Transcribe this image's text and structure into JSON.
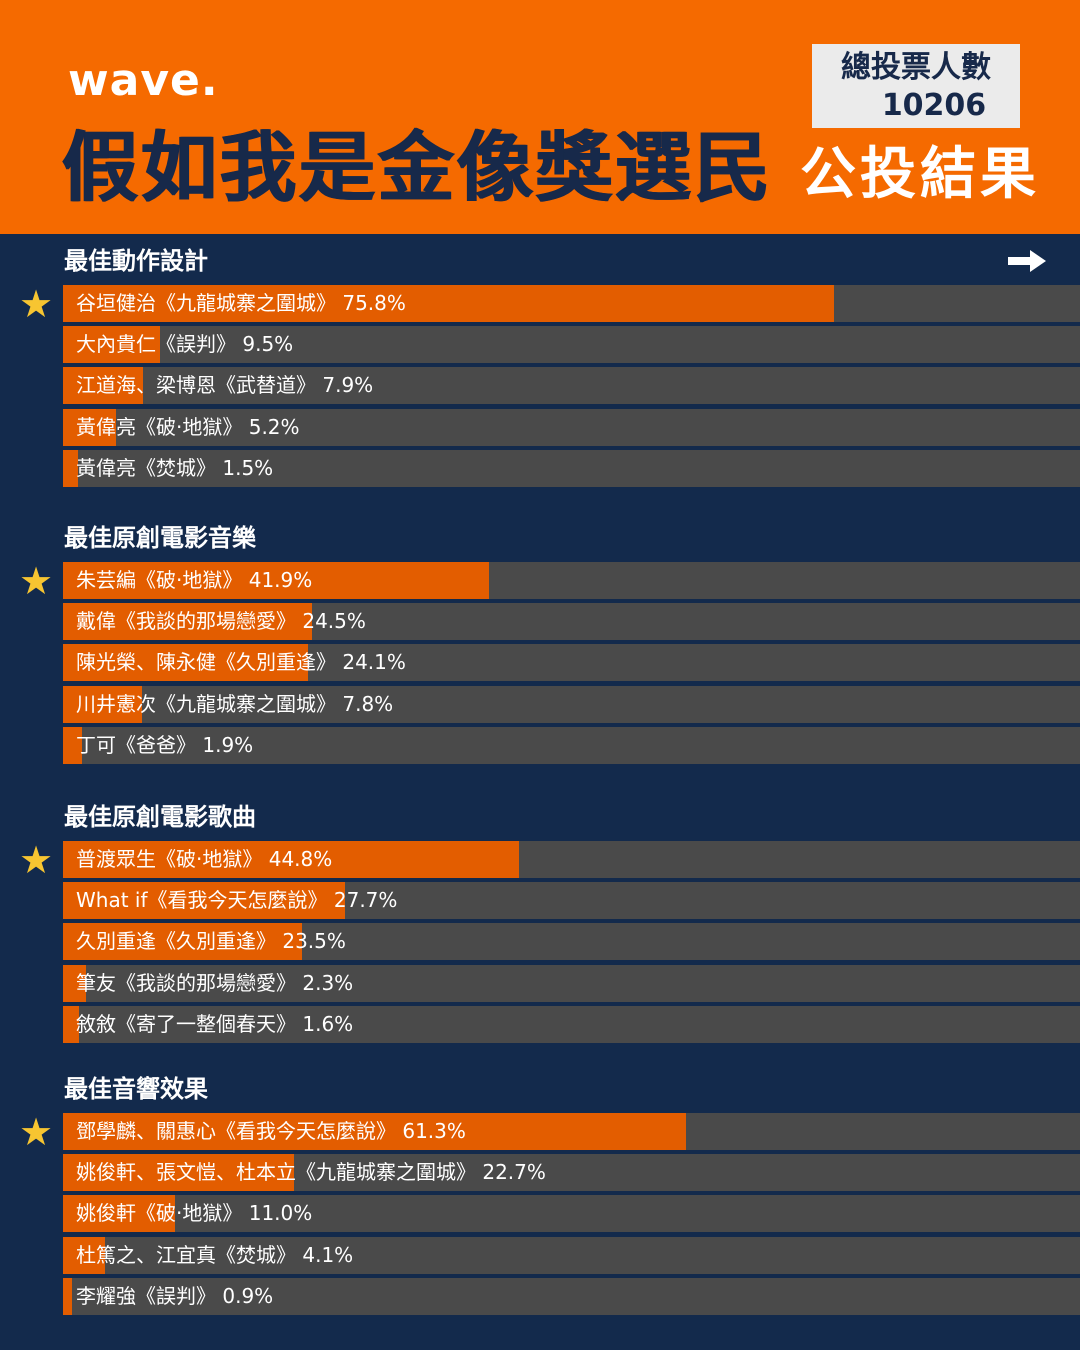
{
  "header": {
    "logo": "wave.",
    "title": "假如我是金像獎選民",
    "votes_label": "總投票人數",
    "votes_count": "10206",
    "subtitle": "公投結果"
  },
  "colors": {
    "header_bg": "#f56a00",
    "page_bg": "#132a4c",
    "bar_track": "#4a4a4a",
    "bar_fill": "#e35d00",
    "star": "#f7c531"
  },
  "icons": {
    "next": "arrow-right-icon",
    "winner": "star-icon"
  },
  "chart_data": [
    {
      "type": "bar",
      "orientation": "horizontal",
      "title": "最佳動作設計",
      "xlim": [
        0,
        100
      ],
      "winner_index": 0,
      "items": [
        {
          "label": "谷垣健治《九龍城寨之圍城》",
          "value": 75.8,
          "value_text": "75.8%"
        },
        {
          "label": "大內貴仁《誤判》",
          "value": 9.5,
          "value_text": "9.5%"
        },
        {
          "label": "江道海、梁博恩《武替道》",
          "value": 7.9,
          "value_text": "7.9%"
        },
        {
          "label": "黃偉亮《破·地獄》",
          "value": 5.2,
          "value_text": "5.2%"
        },
        {
          "label": "黃偉亮《焚城》",
          "value": 1.5,
          "value_text": "1.5%"
        }
      ]
    },
    {
      "type": "bar",
      "orientation": "horizontal",
      "title": "最佳原創電影音樂",
      "xlim": [
        0,
        100
      ],
      "winner_index": 0,
      "items": [
        {
          "label": "朱芸編《破·地獄》",
          "value": 41.9,
          "value_text": "41.9%"
        },
        {
          "label": "戴偉《我談的那場戀愛》",
          "value": 24.5,
          "value_text": "24.5%"
        },
        {
          "label": "陳光榮、陳永健《久別重逢》",
          "value": 24.1,
          "value_text": "24.1%"
        },
        {
          "label": "川井憲次《九龍城寨之圍城》",
          "value": 7.8,
          "value_text": "7.8%"
        },
        {
          "label": "丁可《爸爸》",
          "value": 1.9,
          "value_text": "1.9%"
        }
      ]
    },
    {
      "type": "bar",
      "orientation": "horizontal",
      "title": "最佳原創電影歌曲",
      "xlim": [
        0,
        100
      ],
      "winner_index": 0,
      "items": [
        {
          "label": "普渡眾生《破·地獄》",
          "value": 44.8,
          "value_text": "44.8%"
        },
        {
          "label": "What if《看我今天怎麼說》",
          "value": 27.7,
          "value_text": "27.7%"
        },
        {
          "label": "久別重逢《久別重逢》",
          "value": 23.5,
          "value_text": "23.5%"
        },
        {
          "label": "筆友《我談的那場戀愛》",
          "value": 2.3,
          "value_text": "2.3%"
        },
        {
          "label": "敘敘《寄了一整個春天》",
          "value": 1.6,
          "value_text": "1.6%"
        }
      ]
    },
    {
      "type": "bar",
      "orientation": "horizontal",
      "title": "最佳音響效果",
      "xlim": [
        0,
        100
      ],
      "winner_index": 0,
      "items": [
        {
          "label": "鄧學麟、關惠心《看我今天怎麼說》",
          "value": 61.3,
          "value_text": "61.3%"
        },
        {
          "label": "姚俊軒、張文愷、杜本立《九龍城寨之圍城》",
          "value": 22.7,
          "value_text": "22.7%"
        },
        {
          "label": "姚俊軒《破·地獄》",
          "value": 11.0,
          "value_text": "11.0%"
        },
        {
          "label": "杜篤之、江宜真《焚城》",
          "value": 4.1,
          "value_text": "4.1%"
        },
        {
          "label": "李耀強《誤判》",
          "value": 0.9,
          "value_text": "0.9%"
        }
      ]
    }
  ]
}
